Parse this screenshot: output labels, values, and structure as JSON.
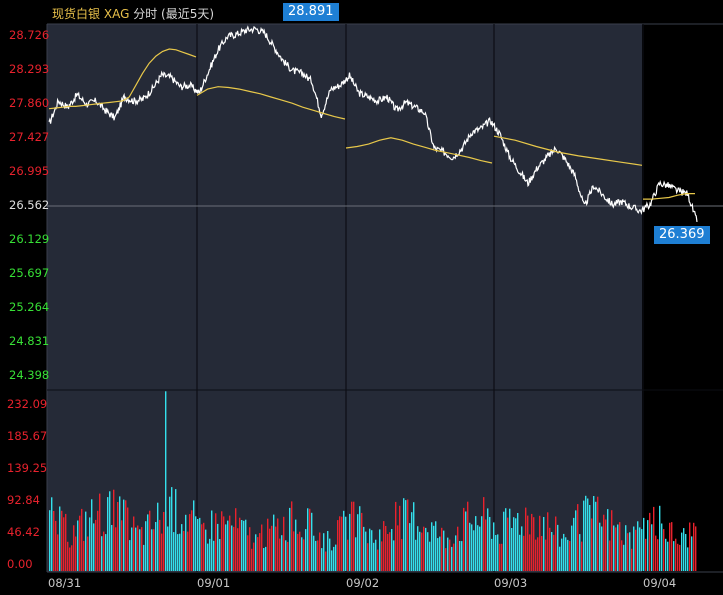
{
  "header": {
    "title": "现货白银",
    "symbol": "XAG",
    "mode": "分时 (最近5天)"
  },
  "colors": {
    "background": "#000000",
    "plot_background": "#252a37",
    "price_line": "#ffffff",
    "avg_line": "#e8c84a",
    "up_bar": "#e8222d",
    "down_bar": "#34e0ec",
    "price_axis_up": "#e8222d",
    "price_axis_down": "#37e036",
    "volume_axis": "#e8222d",
    "tag_bg": "#1e7fd4"
  },
  "tags": {
    "high": "28.891",
    "current": "26.369"
  },
  "chart_data": [
    {
      "type": "line",
      "title": "",
      "y_ticks": [
        "28.726",
        "28.293",
        "27.860",
        "27.427",
        "26.995",
        "26.562",
        "26.129",
        "25.697",
        "25.264",
        "24.831",
        "24.398"
      ],
      "ylim": [
        24.398,
        28.726
      ],
      "reference_price": 26.562,
      "x_tick_labels": [
        "08/31",
        "09/01",
        "09/02",
        "09/03",
        "09/04"
      ],
      "series": [
        {
          "values": [
            27.6,
            27.9,
            27.82,
            27.98,
            27.86,
            27.9,
            27.78,
            27.68,
            27.95,
            27.9,
            27.92,
            28.05,
            28.23,
            28.2,
            28.08,
            28.1,
            28.0,
            28.28,
            28.55,
            28.72,
            28.75,
            28.8,
            28.82,
            28.76,
            28.58,
            28.4,
            28.28,
            28.25,
            28.15,
            27.72,
            28.05,
            28.1,
            28.22,
            28.0,
            27.95,
            27.9,
            27.95,
            27.78,
            27.88,
            27.82,
            27.75,
            27.3,
            27.25,
            27.18,
            27.3,
            27.5,
            27.55,
            27.65,
            27.48,
            27.2,
            27.02,
            26.85,
            27.05,
            27.18,
            27.3,
            27.15,
            26.95,
            26.55,
            26.82,
            26.7,
            26.58,
            26.62,
            26.55,
            26.5,
            26.58,
            26.85,
            26.82,
            26.75,
            26.72,
            26.36
          ]
        },
        {
          "values": [
            27.8,
            27.81,
            27.82,
            27.83,
            27.83,
            27.84,
            27.85,
            27.86,
            27.87,
            27.88,
            27.89,
            27.9,
            27.95,
            28.1,
            28.25,
            28.38,
            28.47,
            28.53,
            28.56,
            28.55,
            28.52,
            28.49,
            28.46,
            27.97,
            28.05,
            28.08,
            28.07,
            28.05,
            28.02,
            27.99,
            27.95,
            27.91,
            27.87,
            27.82,
            27.78,
            27.74,
            27.7,
            27.67,
            27.3,
            27.32,
            27.35,
            27.4,
            27.43,
            27.4,
            27.35,
            27.31,
            27.27,
            27.24,
            27.21,
            27.18,
            27.14,
            27.11,
            26.65,
            26.65,
            26.66,
            26.67,
            26.7,
            26.72,
            26.72
          ]
        }
      ]
    },
    {
      "type": "bar",
      "title": "",
      "y_ticks": [
        "232.09",
        "185.67",
        "139.25",
        "92.84",
        "46.42",
        "0.00"
      ],
      "ylim": [
        0,
        232.09
      ],
      "x_tick_labels": [
        "08/31",
        "09/01",
        "09/02",
        "09/03",
        "09/04"
      ],
      "peak_values": [
        116,
        94,
        103,
        107,
        96
      ],
      "max_spike": 252
    }
  ]
}
